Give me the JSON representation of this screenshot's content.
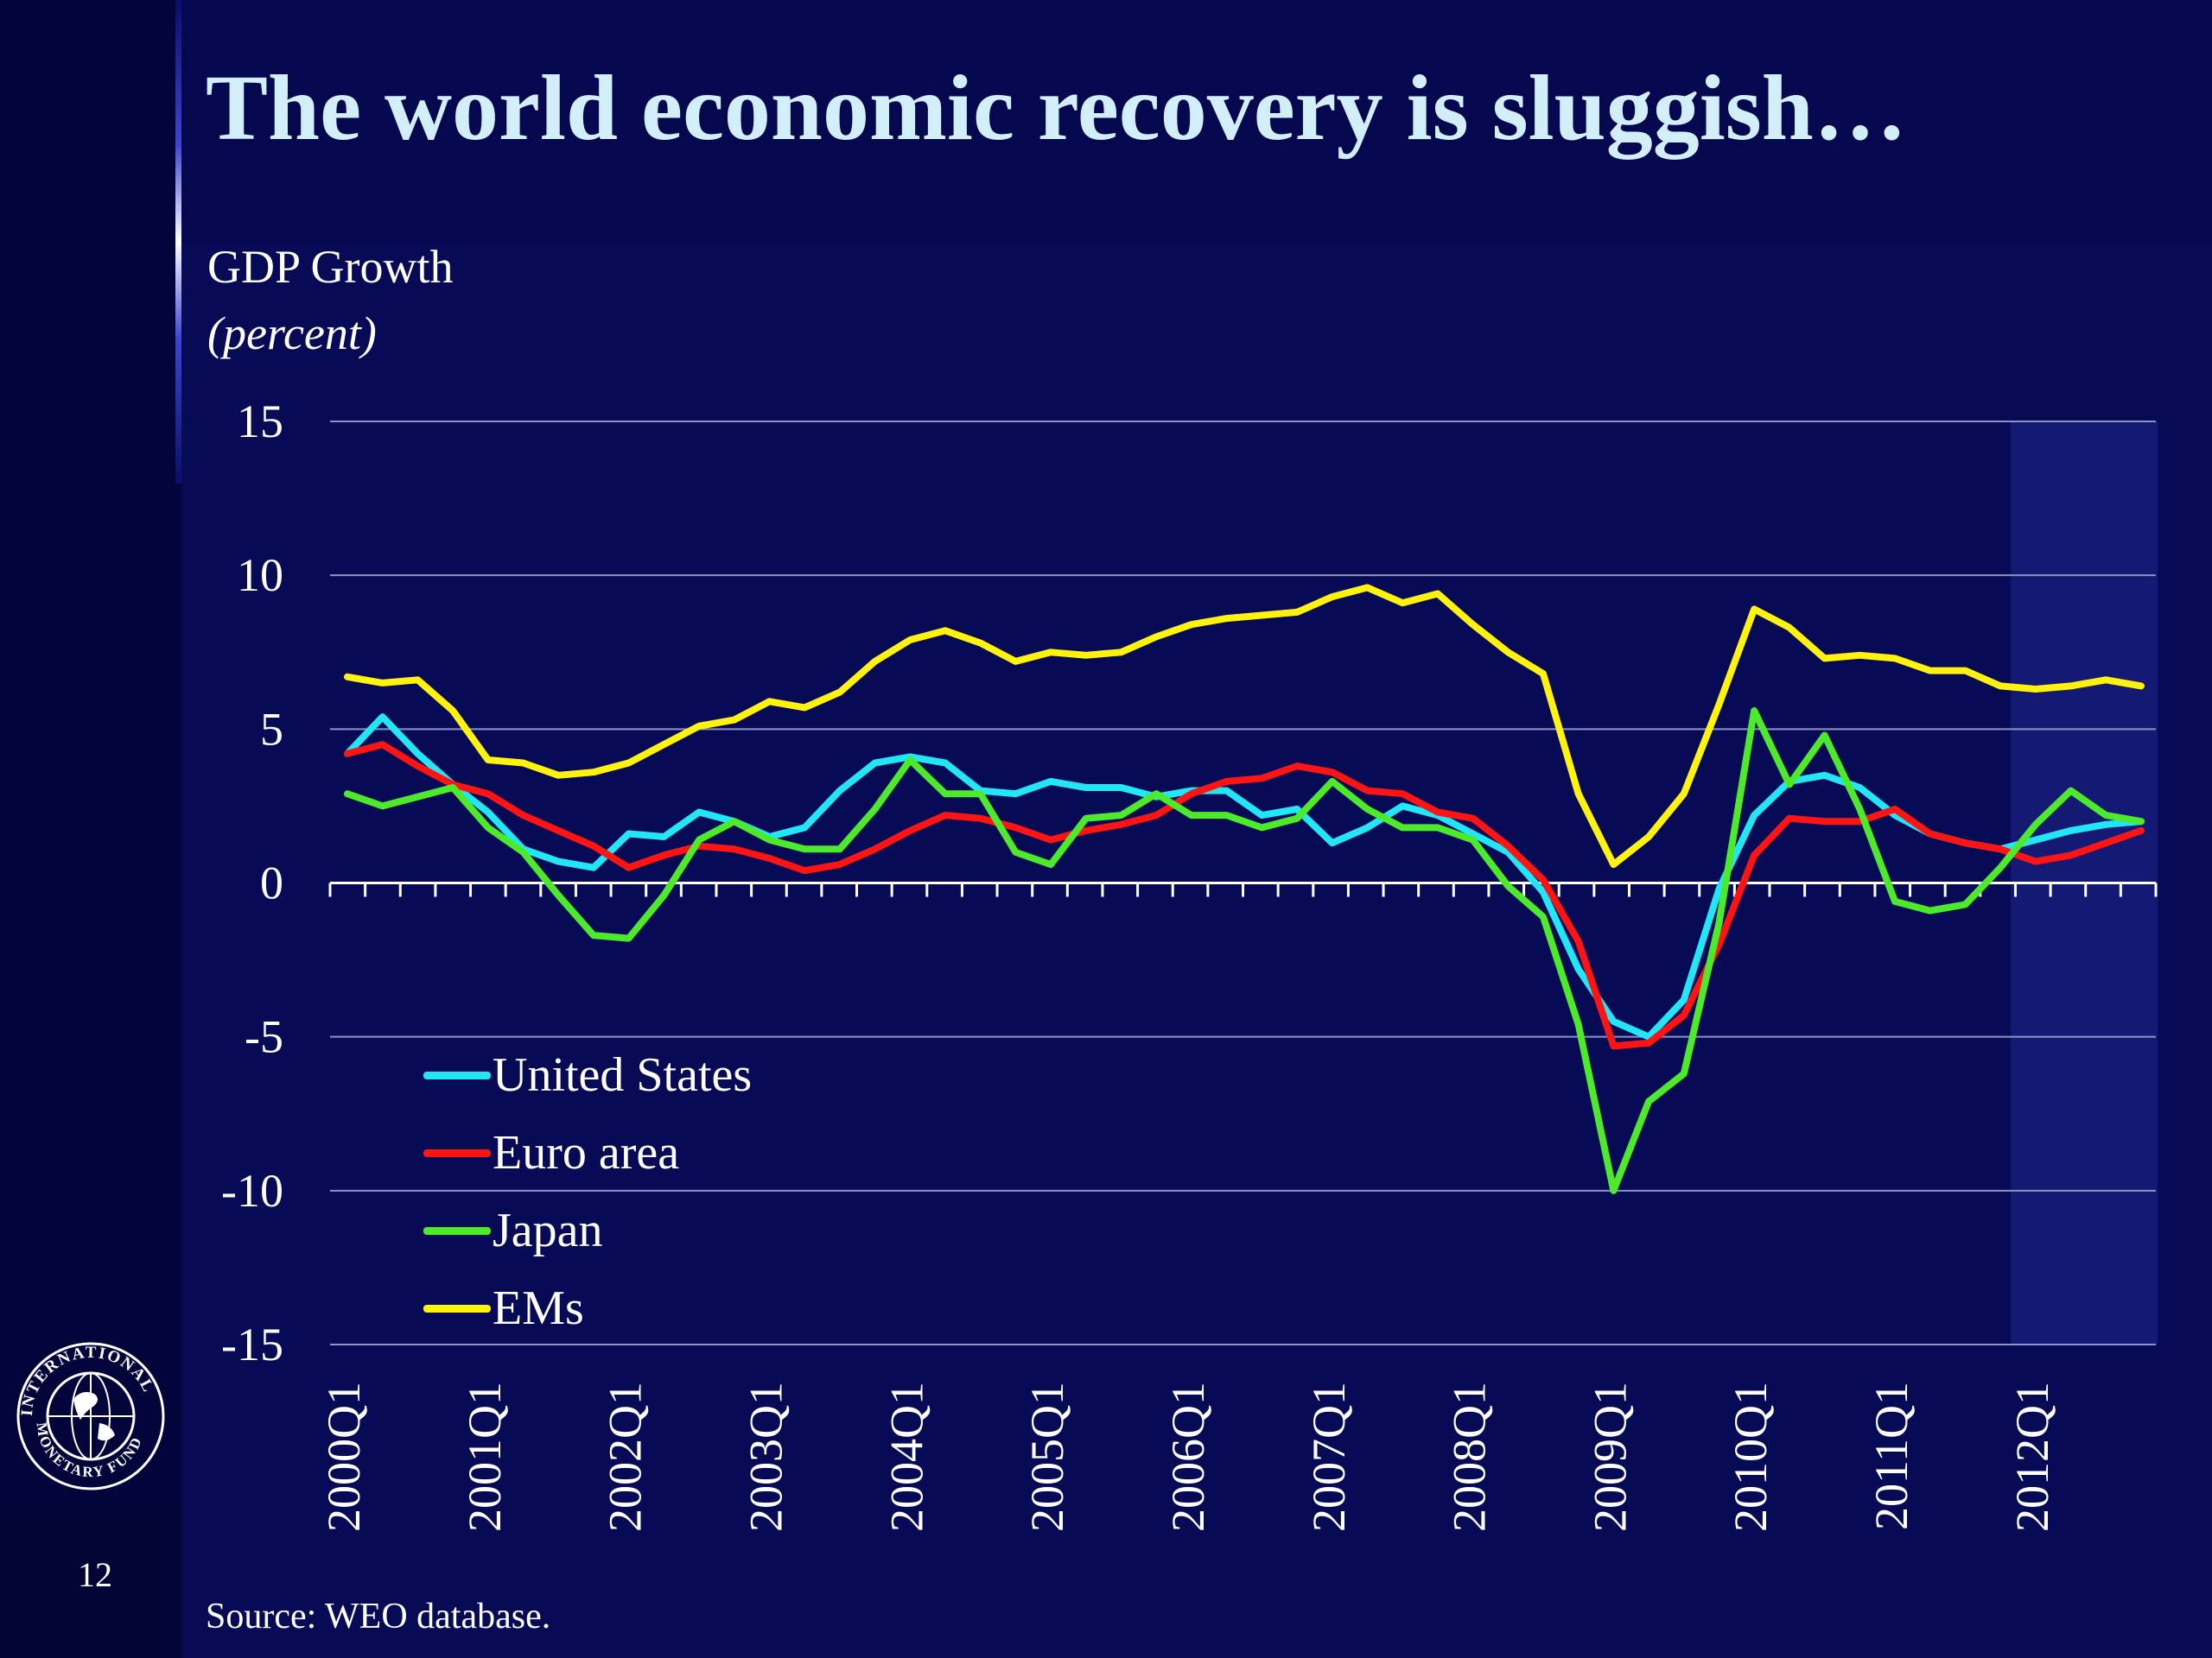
{
  "title": "The world economic recovery is sluggish…",
  "slide_number": "12",
  "source": "Source:  WEO database.",
  "logo": {
    "text_top": "INTERNATIONAL",
    "text_bottom": "MONETARY FUND"
  },
  "colors": {
    "background": "#05074f",
    "title": "#d2eef8",
    "forecast_shade": "#141a73",
    "grid": "#8d93c4"
  },
  "chart_data": {
    "type": "line",
    "ylabel": "GDP Growth",
    "yunit": "(percent)",
    "ylim": [
      -15,
      15
    ],
    "yticks": [
      15,
      10,
      5,
      0,
      -5,
      -10,
      -15
    ],
    "ytick_labels": [
      "15",
      "10",
      "5",
      "0",
      "-5",
      "-10",
      "-15"
    ],
    "grid": true,
    "legend_position": "bottom-left",
    "shaded_region": {
      "from": "2011Q4",
      "to": "2012Q4"
    },
    "xtick_labels": [
      "2000Q1",
      "2001Q1",
      "2002Q1",
      "2003Q1",
      "2004Q1",
      "2005Q1",
      "2006Q1",
      "2007Q1",
      "2008Q1",
      "2009Q1",
      "2010Q1",
      "2011Q1",
      "2012Q1"
    ],
    "x": [
      "2000Q1",
      "2000Q2",
      "2000Q3",
      "2000Q4",
      "2001Q1",
      "2001Q2",
      "2001Q3",
      "2001Q4",
      "2002Q1",
      "2002Q2",
      "2002Q3",
      "2002Q4",
      "2003Q1",
      "2003Q2",
      "2003Q3",
      "2003Q4",
      "2004Q1",
      "2004Q2",
      "2004Q3",
      "2004Q4",
      "2005Q1",
      "2005Q2",
      "2005Q3",
      "2005Q4",
      "2006Q1",
      "2006Q2",
      "2006Q3",
      "2006Q4",
      "2007Q1",
      "2007Q2",
      "2007Q3",
      "2007Q4",
      "2008Q1",
      "2008Q2",
      "2008Q3",
      "2008Q4",
      "2009Q1",
      "2009Q2",
      "2009Q3",
      "2009Q4",
      "2010Q1",
      "2010Q2",
      "2010Q3",
      "2010Q4",
      "2011Q1",
      "2011Q2",
      "2011Q3",
      "2011Q4",
      "2012Q1",
      "2012Q2",
      "2012Q3",
      "2012Q4"
    ],
    "series": [
      {
        "name": "United States",
        "color": "#22e6f5",
        "values": [
          4.2,
          5.4,
          4.2,
          3.2,
          2.3,
          1.1,
          0.7,
          0.5,
          1.6,
          1.5,
          2.3,
          2.0,
          1.5,
          1.8,
          3.0,
          3.9,
          4.1,
          3.9,
          3.0,
          2.9,
          3.3,
          3.1,
          3.1,
          2.8,
          3.0,
          3.0,
          2.2,
          2.4,
          1.3,
          1.8,
          2.5,
          2.2,
          1.6,
          1.0,
          -0.3,
          -2.8,
          -4.5,
          -5.0,
          -3.8,
          -0.2,
          2.2,
          3.3,
          3.5,
          3.1,
          2.2,
          1.6,
          1.3,
          1.1,
          1.4,
          1.7,
          1.9,
          2.0
        ]
      },
      {
        "name": "Euro area",
        "color": "#ff1414",
        "values": [
          4.2,
          4.5,
          3.8,
          3.2,
          2.9,
          2.2,
          1.7,
          1.2,
          0.5,
          0.9,
          1.2,
          1.1,
          0.8,
          0.4,
          0.6,
          1.1,
          1.7,
          2.2,
          2.1,
          1.8,
          1.4,
          1.7,
          1.9,
          2.2,
          2.9,
          3.3,
          3.4,
          3.8,
          3.6,
          3.0,
          2.9,
          2.3,
          2.1,
          1.2,
          0.1,
          -1.9,
          -5.3,
          -5.2,
          -4.3,
          -2.0,
          0.9,
          2.1,
          2.0,
          2.0,
          2.4,
          1.6,
          1.3,
          1.1,
          0.7,
          0.9,
          1.3,
          1.7
        ]
      },
      {
        "name": "Japan",
        "color": "#4cea2a",
        "values": [
          2.9,
          2.5,
          2.8,
          3.1,
          1.8,
          1.0,
          -0.4,
          -1.7,
          -1.8,
          -0.4,
          1.4,
          2.0,
          1.4,
          1.1,
          1.1,
          2.4,
          4.0,
          2.9,
          2.9,
          1.0,
          0.6,
          2.1,
          2.2,
          2.9,
          2.2,
          2.2,
          1.8,
          2.1,
          3.3,
          2.4,
          1.8,
          1.8,
          1.4,
          -0.1,
          -1.1,
          -4.6,
          -10.0,
          -7.1,
          -6.2,
          -1.3,
          5.6,
          3.2,
          4.8,
          2.4,
          -0.6,
          -0.9,
          -0.7,
          0.5,
          1.9,
          3.0,
          2.2,
          2.0
        ]
      },
      {
        "name": "EMs",
        "color": "#fff20f",
        "values": [
          6.7,
          6.5,
          6.6,
          5.6,
          4.0,
          3.9,
          3.5,
          3.6,
          3.9,
          4.5,
          5.1,
          5.3,
          5.9,
          5.7,
          6.2,
          7.2,
          7.9,
          8.2,
          7.8,
          7.2,
          7.5,
          7.4,
          7.5,
          8.0,
          8.4,
          8.6,
          8.7,
          8.8,
          9.3,
          9.6,
          9.1,
          9.4,
          8.4,
          7.5,
          6.8,
          2.9,
          0.6,
          1.5,
          2.9,
          5.8,
          8.9,
          8.3,
          7.3,
          7.4,
          7.3,
          6.9,
          6.9,
          6.4,
          6.3,
          6.4,
          6.6,
          6.4
        ]
      }
    ]
  }
}
